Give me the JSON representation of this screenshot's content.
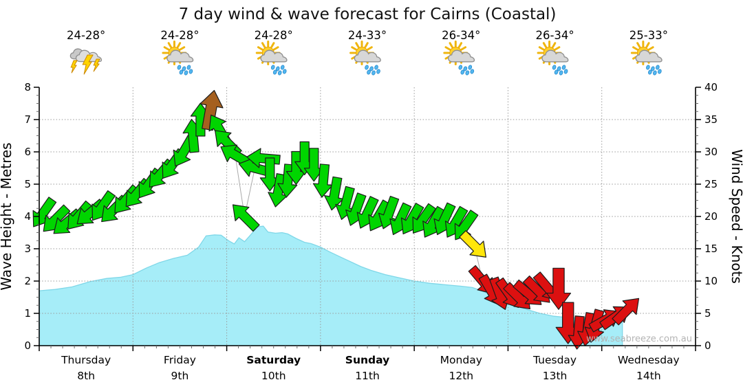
{
  "title": "7 day wind & wave forecast for Cairns (Coastal)",
  "watermark": "www.seabreeze.com.au",
  "days": [
    {
      "name": "Thursday",
      "date": "8th",
      "temp": "24-28°",
      "icon": "storm",
      "weekend": false
    },
    {
      "name": "Friday",
      "date": "9th",
      "temp": "24-28°",
      "icon": "sun-showers",
      "weekend": false
    },
    {
      "name": "Saturday",
      "date": "10th",
      "temp": "24-28°",
      "icon": "sun-showers",
      "weekend": true
    },
    {
      "name": "Sunday",
      "date": "11th",
      "temp": "24-33°",
      "icon": "sun-showers",
      "weekend": true
    },
    {
      "name": "Monday",
      "date": "12th",
      "temp": "26-34°",
      "icon": "sun-showers",
      "weekend": false
    },
    {
      "name": "Tuesday",
      "date": "13th",
      "temp": "26-34°",
      "icon": "sun-showers",
      "weekend": false
    },
    {
      "name": "Wednesday",
      "date": "14th",
      "temp": "25-33°",
      "icon": "sun-showers",
      "weekend": false
    }
  ],
  "colors": {
    "wave_fill": "#a6edf8",
    "wave_edge": "#7fd7e8",
    "grid": "#999999",
    "axis": "#000000",
    "minor_tick": "#666666",
    "date_text": "#999999",
    "connector": "#aaaaaa",
    "arrow_outline": "#1c1c1c",
    "green": "#00d500",
    "brown": "#a5601f",
    "yellow": "#ffe60a",
    "red": "#dc1010"
  },
  "chart_data": {
    "type": "area",
    "title": "7 day wind & wave forecast for Cairns (Coastal)",
    "grid": true,
    "legend": false,
    "x_axis": {
      "unit": "days",
      "range_days": [
        0,
        7
      ],
      "day_labels": [
        "Thursday 8th",
        "Friday 9th",
        "Saturday 10th",
        "Sunday 11th",
        "Monday 12th",
        "Tuesday 13th",
        "Wednesday 14th"
      ]
    },
    "left_axis": {
      "label": "Wave Height - Metres",
      "min": 0,
      "max": 8,
      "major_tick": 1,
      "minor_tick": 0.25
    },
    "right_axis": {
      "label": "Wind Speed - Knots",
      "min": 0,
      "max": 40,
      "major_tick": 5,
      "minor_tick": 1.25
    },
    "wave_series": {
      "name": "Wave Height (m)",
      "t_days": [
        0,
        0.17,
        0.35,
        0.54,
        0.72,
        0.87,
        1.0,
        1.14,
        1.28,
        1.43,
        1.58,
        1.7,
        1.78,
        1.87,
        1.94,
        2.02,
        2.08,
        2.13,
        2.19,
        2.26,
        2.33,
        2.39,
        2.44,
        2.52,
        2.59,
        2.65,
        2.74,
        2.83,
        2.9,
        3.0,
        3.1,
        3.21,
        3.32,
        3.43,
        3.54,
        3.69,
        3.84,
        4.0,
        4.17,
        4.35,
        4.5,
        4.62,
        4.72,
        4.83,
        4.94,
        5.06,
        5.2,
        5.34,
        5.49,
        5.64,
        5.82,
        6.0,
        6.11,
        6.22
      ],
      "values_m": [
        1.7,
        1.74,
        1.82,
        1.98,
        2.08,
        2.12,
        2.2,
        2.4,
        2.57,
        2.7,
        2.8,
        3.05,
        3.4,
        3.43,
        3.42,
        3.25,
        3.15,
        3.34,
        3.22,
        3.45,
        3.68,
        3.7,
        3.52,
        3.48,
        3.5,
        3.46,
        3.32,
        3.2,
        3.16,
        3.05,
        2.9,
        2.75,
        2.6,
        2.45,
        2.33,
        2.2,
        2.1,
        2.0,
        1.93,
        1.88,
        1.84,
        1.8,
        1.7,
        1.55,
        1.38,
        1.27,
        1.12,
        1.0,
        0.91,
        0.87,
        0.85,
        0.84,
        0.86,
        0.87
      ],
      "data_ends_at_day": 6.22
    },
    "wind_series": {
      "name": "Wind Speed & Direction (knots)",
      "points_format": [
        "t_days",
        "knots",
        "dir_deg_0_is_up",
        "color",
        "scale"
      ],
      "points": [
        [
          0.04,
          20.5,
          215,
          "green",
          1
        ],
        [
          0.17,
          19.5,
          225,
          "green",
          1
        ],
        [
          0.29,
          19,
          230,
          "green",
          1
        ],
        [
          0.42,
          20,
          220,
          "green",
          1
        ],
        [
          0.54,
          20.5,
          230,
          "green",
          1
        ],
        [
          0.67,
          21.5,
          215,
          "green",
          1
        ],
        [
          0.79,
          21,
          225,
          "green",
          1
        ],
        [
          0.92,
          22.5,
          220,
          "green",
          1
        ],
        [
          1.04,
          23.5,
          220,
          "green",
          1
        ],
        [
          1.17,
          25,
          215,
          "green",
          1
        ],
        [
          1.29,
          26.5,
          220,
          "green",
          1
        ],
        [
          1.42,
          28,
          215,
          "green",
          1
        ],
        [
          1.54,
          30,
          210,
          "green",
          1
        ],
        [
          1.64,
          32.5,
          355,
          "green",
          1
        ],
        [
          1.72,
          35,
          0,
          "green",
          1
        ],
        [
          1.83,
          36.5,
          10,
          "brown",
          1.2
        ],
        [
          1.92,
          33.5,
          330,
          "green",
          1
        ],
        [
          2.0,
          31.5,
          315,
          "green",
          1
        ],
        [
          2.09,
          29.5,
          300,
          "green",
          1
        ],
        [
          2.19,
          20,
          315,
          "green",
          1
        ],
        [
          2.3,
          27.5,
          285,
          "green",
          1
        ],
        [
          2.39,
          29,
          275,
          "green",
          1
        ],
        [
          2.46,
          26.5,
          180,
          "green",
          1
        ],
        [
          2.55,
          24,
          190,
          "green",
          1
        ],
        [
          2.65,
          25.5,
          185,
          "green",
          1
        ],
        [
          2.74,
          27.5,
          180,
          "green",
          1
        ],
        [
          2.83,
          29,
          180,
          "green",
          1
        ],
        [
          2.93,
          28,
          180,
          "green",
          1
        ],
        [
          3.03,
          25.5,
          185,
          "green",
          1
        ],
        [
          3.15,
          23.5,
          190,
          "green",
          1
        ],
        [
          3.27,
          22,
          195,
          "green",
          1
        ],
        [
          3.38,
          21,
          200,
          "green",
          1
        ],
        [
          3.5,
          20.5,
          205,
          "green",
          1
        ],
        [
          3.62,
          20,
          210,
          "green",
          1
        ],
        [
          3.73,
          20.5,
          200,
          "green",
          1
        ],
        [
          3.85,
          19.5,
          205,
          "green",
          1
        ],
        [
          3.97,
          19.5,
          210,
          "green",
          1
        ],
        [
          4.09,
          19.5,
          215,
          "green",
          1
        ],
        [
          4.2,
          19,
          210,
          "green",
          1
        ],
        [
          4.32,
          19.5,
          205,
          "green",
          1
        ],
        [
          4.44,
          19,
          210,
          "green",
          1
        ],
        [
          4.54,
          18.5,
          215,
          "green",
          1
        ],
        [
          4.64,
          15.5,
          135,
          "yellow",
          1
        ],
        [
          4.73,
          10,
          140,
          "red",
          1
        ],
        [
          4.82,
          8.5,
          150,
          "red",
          1
        ],
        [
          4.91,
          8,
          160,
          "red",
          1
        ],
        [
          5.01,
          8,
          145,
          "red",
          1
        ],
        [
          5.11,
          7.5,
          135,
          "red",
          1
        ],
        [
          5.22,
          8,
          130,
          "red",
          1
        ],
        [
          5.32,
          8.5,
          135,
          "red",
          1
        ],
        [
          5.42,
          9,
          140,
          "red",
          1
        ],
        [
          5.54,
          8.8,
          180,
          "red",
          1.25
        ],
        [
          5.64,
          3.5,
          180,
          "red",
          1.25
        ],
        [
          5.75,
          2,
          185,
          "red",
          1
        ],
        [
          5.85,
          2.5,
          190,
          "red",
          1
        ],
        [
          5.93,
          3,
          195,
          "red",
          1
        ],
        [
          6.04,
          4,
          60,
          "red",
          1
        ],
        [
          6.15,
          4.5,
          55,
          "red",
          1
        ],
        [
          6.27,
          5.5,
          45,
          "red",
          1
        ]
      ]
    }
  }
}
